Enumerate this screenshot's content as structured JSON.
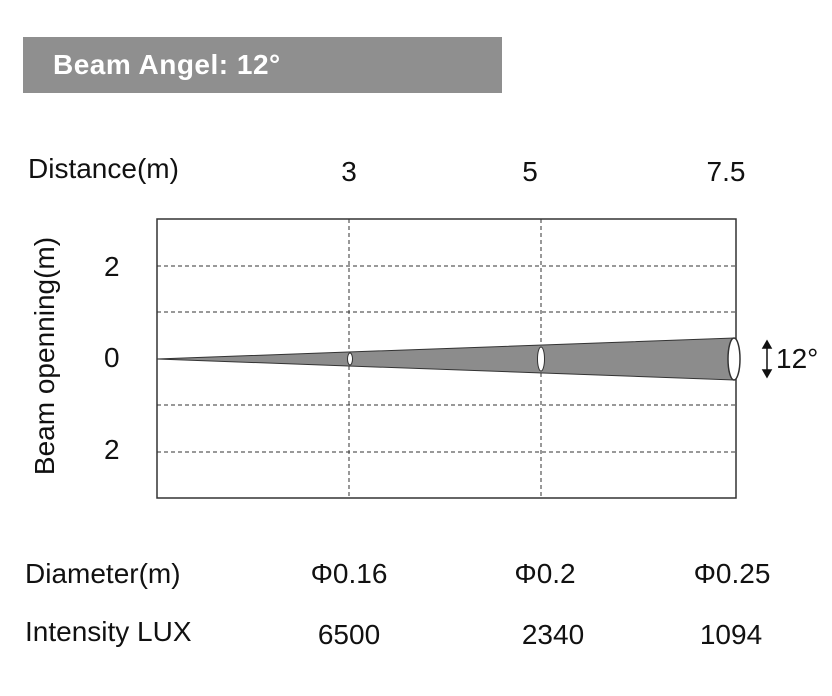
{
  "title": "Beam Angel: 12°",
  "header": {
    "distance_label": "Distance(m)",
    "distances": [
      "3",
      "5",
      "7.5"
    ]
  },
  "axis": {
    "y_label": "Beam openning(m)",
    "y_ticks": [
      "2",
      "0",
      "2"
    ]
  },
  "angle_label": "12°",
  "rows": {
    "diameter_label": "Diameter(m)",
    "diameters": [
      "Φ0.16",
      "Φ0.2",
      "Φ0.25"
    ],
    "intensity_label": "Intensity LUX",
    "intensities": [
      "6500",
      "2340",
      "1094"
    ]
  },
  "colors": {
    "title_bar": "#8f8f8f",
    "beam": "#8c8c8c",
    "grid": "#333333"
  }
}
